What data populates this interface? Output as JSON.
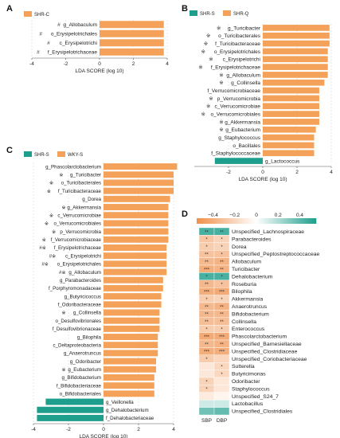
{
  "colors": {
    "orange": "#F4A259",
    "teal": "#1E9E8C",
    "symbol": "#333333"
  },
  "chart_data": [
    {
      "panel": "A",
      "type": "bar",
      "orientation": "horizontal",
      "legend": [
        {
          "name": "SHR-C",
          "color": "#F4A259"
        }
      ],
      "legend_position": "top-left",
      "xlabel": "LDA SCORE (log 10)",
      "xlim": [
        -4,
        4
      ],
      "xticks": [
        -4,
        -2,
        0,
        2,
        4
      ],
      "grid": true,
      "bars": [
        {
          "label": "g_Allobaculum",
          "mark": "#",
          "value": 3.8,
          "group": "SHR-C"
        },
        {
          "label": "o_Erysipelotrichales",
          "mark": "#",
          "value": 3.8,
          "group": "SHR-C"
        },
        {
          "label": "c_Erysipelotrichi",
          "mark": "#",
          "value": 3.8,
          "group": "SHR-C"
        },
        {
          "label": "f_Erysipelotrichaceae",
          "mark": "#",
          "value": 3.8,
          "group": "SHR-C"
        }
      ]
    },
    {
      "panel": "B",
      "type": "bar",
      "orientation": "horizontal",
      "legend": [
        {
          "name": "SHR-S",
          "color": "#1E9E8C"
        },
        {
          "name": "SHR-Q",
          "color": "#F4A259"
        }
      ],
      "legend_position": "top-left",
      "xlabel": "LDA SCORE (log 10)",
      "xlim": [
        -4,
        4
      ],
      "xticks": [
        -2,
        0,
        2,
        4
      ],
      "grid": true,
      "bars": [
        {
          "label": "g_Turicibacter",
          "mark": "※",
          "value": 3.9,
          "group": "SHR-Q"
        },
        {
          "label": "o_Turicibacterales",
          "mark": "※",
          "value": 3.9,
          "group": "SHR-Q"
        },
        {
          "label": "f_Turicibacteraceae",
          "mark": "※",
          "value": 3.9,
          "group": "SHR-Q"
        },
        {
          "label": "o_Erysipelotrichales",
          "mark": "※",
          "value": 3.8,
          "group": "SHR-Q"
        },
        {
          "label": "c_Erysipelotrichi",
          "mark": "※",
          "value": 3.8,
          "group": "SHR-Q"
        },
        {
          "label": "f_Erysipelotrichaceae",
          "mark": "※",
          "value": 3.8,
          "group": "SHR-Q"
        },
        {
          "label": "g_Allobaculum",
          "mark": "※",
          "value": 3.8,
          "group": "SHR-Q"
        },
        {
          "label": "g_Collinsella",
          "mark": "※",
          "value": 3.6,
          "group": "SHR-Q"
        },
        {
          "label": "f_Verrucomicrobiaceae",
          "mark": "",
          "value": 3.3,
          "group": "SHR-Q"
        },
        {
          "label": "p_Verrucomicrobia",
          "mark": "※",
          "value": 3.3,
          "group": "SHR-Q"
        },
        {
          "label": "c_Verrucomicrobiae",
          "mark": "※",
          "value": 3.3,
          "group": "SHR-Q"
        },
        {
          "label": "o_Verrucomicrobiales",
          "mark": "※",
          "value": 3.3,
          "group": "SHR-Q"
        },
        {
          "label": "g_Akkermansia",
          "mark": "※",
          "value": 3.3,
          "group": "SHR-Q"
        },
        {
          "label": "g_Eubacterium",
          "mark": "※",
          "value": 3.1,
          "group": "SHR-Q"
        },
        {
          "label": "g_Staphylococcus",
          "mark": "",
          "value": 3.0,
          "group": "SHR-Q"
        },
        {
          "label": "o_Bacillales",
          "mark": "",
          "value": 3.0,
          "group": "SHR-Q"
        },
        {
          "label": "f_Staphylococcaceae",
          "mark": "",
          "value": 3.0,
          "group": "SHR-Q"
        },
        {
          "label": "g_Lactococcus",
          "mark": "",
          "value": -2.8,
          "group": "SHR-S"
        }
      ]
    },
    {
      "panel": "C",
      "type": "bar",
      "orientation": "horizontal",
      "legend": [
        {
          "name": "SHR-S",
          "color": "#1E9E8C"
        },
        {
          "name": "WKY-S",
          "color": "#F4A259"
        }
      ],
      "legend_position": "top-left",
      "xlabel": "LDA SCORE (log 10)",
      "xlim": [
        -4,
        4
      ],
      "xticks": [
        -4,
        -2,
        0,
        2,
        4
      ],
      "grid": true,
      "bars": [
        {
          "label": "g_Phascolarctobacterium",
          "mark": "",
          "value": 4.2,
          "group": "WKY-S"
        },
        {
          "label": "g_Turicibacter",
          "mark": "※",
          "value": 4.0,
          "group": "WKY-S"
        },
        {
          "label": "o_Turicibacterales",
          "mark": "※",
          "value": 4.0,
          "group": "WKY-S"
        },
        {
          "label": "f_Turicibacteraceae",
          "mark": "※",
          "value": 4.0,
          "group": "WKY-S"
        },
        {
          "label": "g_Dorea",
          "mark": "",
          "value": 3.8,
          "group": "WKY-S"
        },
        {
          "label": "g_Akkermansia",
          "mark": "※",
          "value": 3.7,
          "group": "WKY-S"
        },
        {
          "label": "c_Verrucomicrobiae",
          "mark": "※",
          "value": 3.7,
          "group": "WKY-S"
        },
        {
          "label": "o_Verrucomicrobiales",
          "mark": "※",
          "value": 3.7,
          "group": "WKY-S"
        },
        {
          "label": "p_Verrucomicrobia",
          "mark": "※",
          "value": 3.7,
          "group": "WKY-S"
        },
        {
          "label": "f_Verrucomicrobiaceae",
          "mark": "※",
          "value": 3.7,
          "group": "WKY-S"
        },
        {
          "label": "f_Erysipelotrichaceae",
          "mark": "#※",
          "value": 3.6,
          "group": "WKY-S"
        },
        {
          "label": "c_Erysipelotrichi",
          "mark": "#※",
          "value": 3.6,
          "group": "WKY-S"
        },
        {
          "label": "o_Erysipelotrichales",
          "mark": "#※",
          "value": 3.6,
          "group": "WKY-S"
        },
        {
          "label": "g_Allobaculum",
          "mark": "#※",
          "value": 3.6,
          "group": "WKY-S"
        },
        {
          "label": "g_Parabacteroides",
          "mark": "",
          "value": 3.4,
          "group": "WKY-S"
        },
        {
          "label": "f_Porphyromonadaceae",
          "mark": "",
          "value": 3.4,
          "group": "WKY-S"
        },
        {
          "label": "g_Butyricicoccus",
          "mark": "",
          "value": 3.3,
          "group": "WKY-S"
        },
        {
          "label": "f_Odoribacteraceae",
          "mark": "",
          "value": 3.3,
          "group": "WKY-S"
        },
        {
          "label": "g_Collinsella",
          "mark": "※",
          "value": 3.2,
          "group": "WKY-S"
        },
        {
          "label": "o_Desulfovibrionales",
          "mark": "",
          "value": 3.2,
          "group": "WKY-S"
        },
        {
          "label": "f_Desulfovibrionaceae",
          "mark": "",
          "value": 3.2,
          "group": "WKY-S"
        },
        {
          "label": "g_Bilophila",
          "mark": "",
          "value": 3.1,
          "group": "WKY-S"
        },
        {
          "label": "c_Deltaproteobacteria",
          "mark": "",
          "value": 3.1,
          "group": "WKY-S"
        },
        {
          "label": "g_Anaerotruncus",
          "mark": "",
          "value": 3.1,
          "group": "WKY-S"
        },
        {
          "label": "g_Odoribacter",
          "mark": "",
          "value": 3.0,
          "group": "WKY-S"
        },
        {
          "label": "g_Eubacterium",
          "mark": "※",
          "value": 3.0,
          "group": "WKY-S"
        },
        {
          "label": "g_Bifidobacterium",
          "mark": "",
          "value": 2.9,
          "group": "WKY-S"
        },
        {
          "label": "f_Bifidobacteriaceae",
          "mark": "",
          "value": 2.9,
          "group": "WKY-S"
        },
        {
          "label": "o_Bifidobacteriales",
          "mark": "",
          "value": 2.9,
          "group": "WKY-S"
        },
        {
          "label": "g_Veillonella",
          "mark": "",
          "value": -3.3,
          "group": "SHR-S"
        },
        {
          "label": "g_Dehalobacterium",
          "mark": "",
          "value": -3.8,
          "group": "SHR-S"
        },
        {
          "label": "f_Dehalobacteriaceae",
          "mark": "",
          "value": -3.8,
          "group": "SHR-S"
        }
      ]
    },
    {
      "panel": "D",
      "type": "heatmap",
      "colorbar": {
        "ticks": [
          -0.4,
          -0.2,
          0,
          0.2,
          0.4
        ],
        "tick_labels": [
          "−0.4",
          "−0.2",
          "0",
          "0.2",
          "0.4"
        ],
        "range": [
          -0.55,
          0.55
        ],
        "low_color": "#F0904A",
        "mid_color": "#FFFFFF",
        "high_color": "#1E9E8C",
        "position": "top"
      },
      "columns": [
        "SBP",
        "DBP"
      ],
      "rows": [
        {
          "label": "Unspecified_Lachnospiraceae",
          "values": [
            0.45,
            0.45
          ],
          "stars": [
            "**",
            "**"
          ]
        },
        {
          "label": "Parabacteroides",
          "values": [
            -0.28,
            -0.22
          ],
          "stars": [
            "*",
            "*"
          ]
        },
        {
          "label": "Dorea",
          "values": [
            -0.25,
            -0.22
          ],
          "stars": [
            "*",
            "*"
          ]
        },
        {
          "label": "Unspecified_Peptostreptococcaceae",
          "values": [
            -0.3,
            -0.3
          ],
          "stars": [
            "**",
            "*"
          ]
        },
        {
          "label": "Allobaculum",
          "values": [
            -0.35,
            -0.38
          ],
          "stars": [
            "**",
            "**"
          ]
        },
        {
          "label": "Turicibacter",
          "values": [
            -0.4,
            -0.38
          ],
          "stars": [
            "***",
            "**"
          ]
        },
        {
          "label": "Dehalobacterium",
          "values": [
            0.45,
            0.45
          ],
          "stars": [
            "*",
            "*"
          ]
        },
        {
          "label": "Roseburia",
          "values": [
            -0.35,
            -0.3
          ],
          "stars": [
            "**",
            "*"
          ]
        },
        {
          "label": "Bilophila",
          "values": [
            -0.4,
            -0.42
          ],
          "stars": [
            "***",
            "***"
          ]
        },
        {
          "label": "Akkermansia",
          "values": [
            -0.25,
            -0.22
          ],
          "stars": [
            "*",
            "*"
          ]
        },
        {
          "label": "Anaerotruncus",
          "values": [
            -0.35,
            -0.38
          ],
          "stars": [
            "**",
            "**"
          ]
        },
        {
          "label": "Bifidobacterium",
          "values": [
            -0.35,
            -0.35
          ],
          "stars": [
            "**",
            "**"
          ]
        },
        {
          "label": "Collinsella",
          "values": [
            -0.32,
            -0.32
          ],
          "stars": [
            "**",
            "**"
          ]
        },
        {
          "label": "Enterococcus",
          "values": [
            -0.25,
            -0.25
          ],
          "stars": [
            "*",
            "*"
          ]
        },
        {
          "label": "Phascolarctobacterium",
          "values": [
            -0.42,
            -0.42
          ],
          "stars": [
            "***",
            "***"
          ]
        },
        {
          "label": "Unspecified_Barnesiellaceae",
          "values": [
            -0.35,
            -0.38
          ],
          "stars": [
            "**",
            "**"
          ]
        },
        {
          "label": "Unspecified_Clostridiaceae",
          "values": [
            -0.4,
            -0.4
          ],
          "stars": [
            "***",
            "***"
          ]
        },
        {
          "label": "Unspecified_Coriobacteriaceae",
          "values": [
            -0.25,
            -0.2
          ],
          "stars": [
            "*",
            ""
          ]
        },
        {
          "label": "Sutterella",
          "values": [
            -0.12,
            -0.2
          ],
          "stars": [
            "",
            "*"
          ]
        },
        {
          "label": "Butyricimonas",
          "values": [
            -0.12,
            -0.2
          ],
          "stars": [
            "",
            "*"
          ]
        },
        {
          "label": "Odoribacter",
          "values": [
            -0.22,
            -0.12
          ],
          "stars": [
            "*",
            ""
          ]
        },
        {
          "label": "Staphylococcus",
          "values": [
            -0.22,
            -0.12
          ],
          "stars": [
            "*",
            ""
          ]
        },
        {
          "label": "Unspecified_S24_7",
          "values": [
            -0.1,
            -0.05
          ],
          "stars": [
            "",
            ""
          ]
        },
        {
          "label": "Lactobacillus",
          "values": [
            0.12,
            0.12
          ],
          "stars": [
            "",
            ""
          ]
        },
        {
          "label": "Unspecified_Clostridiales",
          "values": [
            0.35,
            0.38
          ],
          "stars": [
            "",
            ""
          ]
        }
      ]
    }
  ]
}
